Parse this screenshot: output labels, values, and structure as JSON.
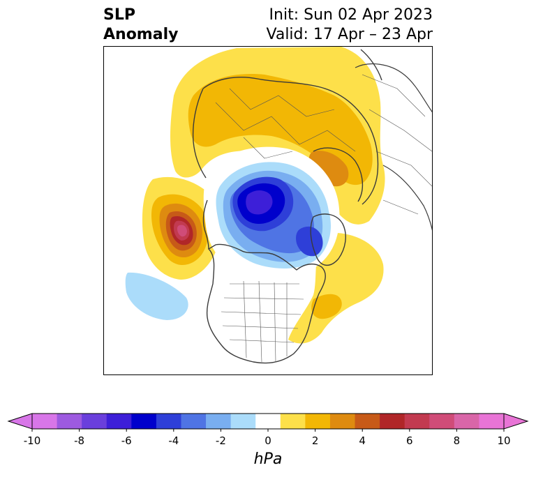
{
  "header": {
    "title_line1": "SLP",
    "title_line2": "Anomaly",
    "init_label": "Init: Sun 02 Apr 2023",
    "valid_label": "Valid: 17 Apr – 23 Apr"
  },
  "colorbar": {
    "unit": "hPa",
    "ticks": [
      "-10",
      "-8",
      "-6",
      "-4",
      "-2",
      "0",
      "2",
      "4",
      "6",
      "8",
      "10"
    ],
    "levels": [
      -10,
      -9,
      -8,
      -7,
      -6,
      -5,
      -4,
      -3,
      -2,
      -1,
      1,
      2,
      3,
      4,
      5,
      6,
      7,
      8,
      9,
      10
    ],
    "colors": [
      "#d876e8",
      "#9d5ae0",
      "#6a3fdc",
      "#3d1fd8",
      "#0000cc",
      "#2e3fd8",
      "#4f74e4",
      "#79aef0",
      "#abdcfa",
      "#ffffff",
      "#fde04a",
      "#f2b705",
      "#de8b10",
      "#c75a18",
      "#b02628",
      "#c23a50",
      "#d04c78",
      "#d966a8",
      "#e874d6"
    ],
    "extend": "both"
  },
  "map": {
    "projection": "north polar stereographic",
    "features": [
      "SLP anomaly contours",
      "coastlines",
      "country borders",
      "state borders"
    ]
  }
}
